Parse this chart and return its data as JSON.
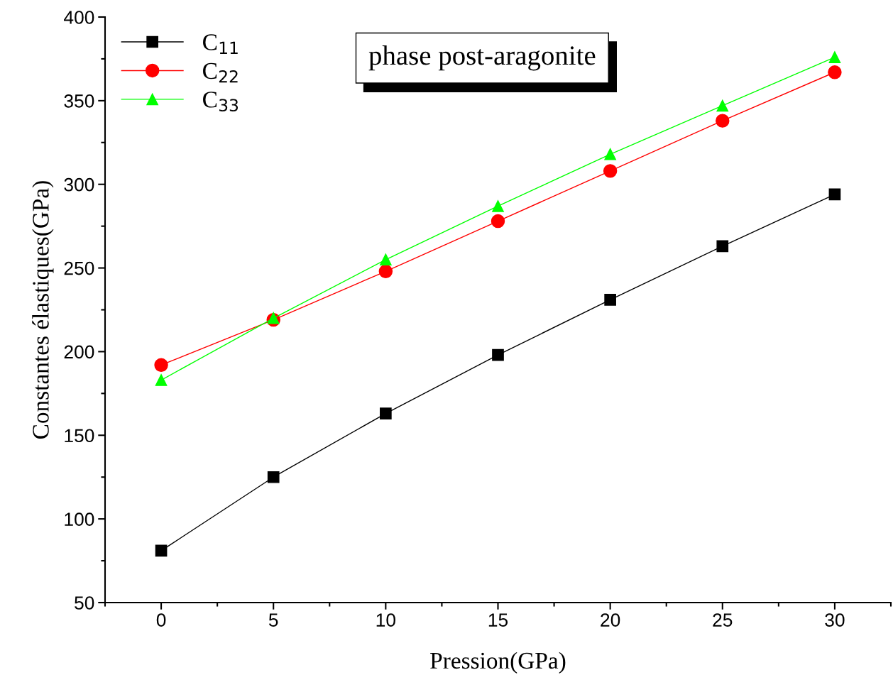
{
  "chart_data": {
    "type": "line",
    "title": "phase post-aragonite",
    "xlabel": "Pression(GPa)",
    "ylabel": "Constantes élastiques(GPa)",
    "x": [
      0,
      5,
      10,
      15,
      20,
      25,
      30
    ],
    "series": [
      {
        "name": "C$_{11}$",
        "color": "#000000",
        "marker": "square",
        "values": [
          81,
          125,
          163,
          198,
          231,
          263,
          294
        ]
      },
      {
        "name": "C$_{22}$",
        "color": "#ff0000",
        "marker": "circle",
        "values": [
          192,
          219,
          248,
          278,
          308,
          338,
          367
        ]
      },
      {
        "name": "C$_{33}$",
        "color": "#00ff00",
        "marker": "triangle",
        "values": [
          183,
          220,
          255,
          287,
          318,
          347,
          376
        ]
      }
    ],
    "xlim": [
      -2.5,
      32.5
    ],
    "xticks": [
      0,
      5,
      10,
      15,
      20,
      25,
      30
    ],
    "ylim": [
      50,
      400
    ],
    "yticks": [
      50,
      100,
      150,
      200,
      250,
      300,
      350,
      400
    ],
    "grid": false,
    "legend": "top left",
    "line_style": "solid"
  }
}
